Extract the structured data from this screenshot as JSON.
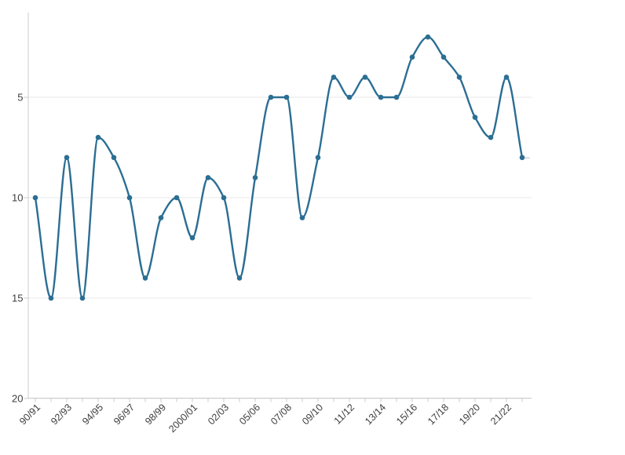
{
  "chart_data": {
    "type": "line",
    "title": "",
    "legend": "none",
    "grid": "horizontal",
    "curve": "monotone",
    "marker": "circle",
    "y_axis_inverted": true,
    "y_ticks": [
      5,
      10,
      15,
      20
    ],
    "ylim_top": 1,
    "ylim_bottom": 20,
    "x_total_points": 32,
    "x_labels_every_other_tick": [
      "90/91",
      "92/93",
      "94/95",
      "96/97",
      "98/99",
      "2000/01",
      "02/03",
      "05/06",
      "07/08",
      "09/10",
      "11/12",
      "13/14",
      "15/16",
      "17/18",
      "19/20",
      "21/22"
    ],
    "values": [
      10,
      15,
      8,
      15,
      7,
      8,
      10,
      14,
      11,
      10,
      12,
      9,
      10,
      14,
      9,
      5,
      5,
      11,
      8,
      4,
      5,
      4,
      5,
      5,
      3,
      2,
      3,
      4,
      6,
      7,
      4,
      8
    ]
  },
  "style": {
    "line_color": "#2b6e93",
    "marker_color": "#2b6e93",
    "grid_color": "#e9e9e9",
    "axis_color": "#cccccc",
    "tick_color": "#cccccc",
    "label_color": "#3d3d3d",
    "last_value_dash_color": "#cfcfcf",
    "background": "#ffffff"
  }
}
